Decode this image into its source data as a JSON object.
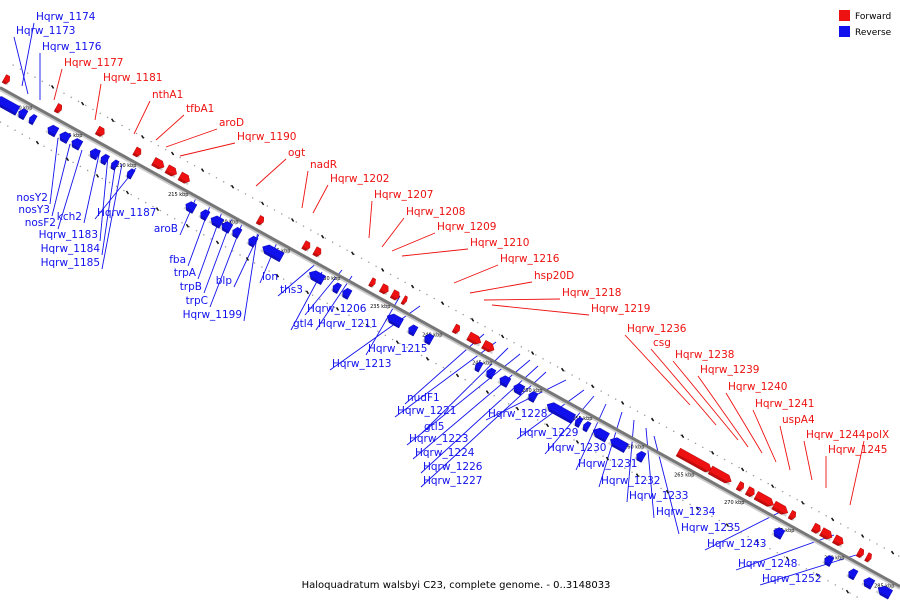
{
  "caption": "Haloquadratum walsbyi C23, complete genome. - 0..3148033",
  "legend": [
    {
      "label": "Forward",
      "color": "#ee1111"
    },
    {
      "label": "Reverse",
      "color": "#1111ee"
    }
  ],
  "colors": {
    "forward": "#ee1111",
    "reverse": "#1111ee",
    "axis": "#888888"
  },
  "ticks": [
    "200 kbp",
    "205 kbp",
    "210 kbp",
    "215 kbp",
    "220 kbp",
    "225 kbp",
    "230 kbp",
    "235 kbp",
    "240 kbp",
    "245 kbp",
    "250 kbp",
    "255 kbp",
    "260 kbp",
    "265 kbp",
    "270 kbp",
    "275 kbp",
    "280 kbp",
    "285 kbp"
  ],
  "forward_labels": [
    "Hqrw_1177",
    "Hqrw_1181",
    "nthA1",
    "tfbA1",
    "aroD",
    "Hqrw_1190",
    "ogt",
    "nadR",
    "Hqrw_1202",
    "Hqrw_1207",
    "Hqrw_1208",
    "Hqrw_1209",
    "Hqrw_1210",
    "Hqrw_1216",
    "hsp20D",
    "Hqrw_1218",
    "Hqrw_1219",
    "Hqrw_1236",
    "csg",
    "Hqrw_1238",
    "Hqrw_1239",
    "Hqrw_1240",
    "Hqrw_1241",
    "uspA4",
    "Hqrw_1244",
    "polX",
    "Hqrw_1245"
  ],
  "reverse_top_labels": [
    "Hqrw_1174",
    "Hqrw_1173",
    "Hqrw_1176"
  ],
  "reverse_labels": [
    "nosY2",
    "nosY3",
    "nosF2",
    "kch2",
    "Hqrw_1183",
    "Hqrw_1184",
    "Hqrw_1185",
    "Hqrw_1187",
    "aroB",
    "fba",
    "trpA",
    "trpB",
    "trpC",
    "Hqrw_1199",
    "blp",
    "lon",
    "ths3",
    "Hqrw_1206",
    "gtl4",
    "Hqrw_1211",
    "Hqrw_1215",
    "Hqrw_1213",
    "nudF1",
    "Hqrw_1221",
    "gtl5",
    "Hqrw_1223",
    "Hqrw_1224",
    "Hqrw_1226",
    "Hqrw_1227",
    "Hqrw_1228",
    "Hqrw_1229",
    "Hqrw_1230",
    "Hqrw_1231",
    "Hqrw_1232",
    "Hqrw_1233",
    "Hqrw_1234",
    "Hqrw_1235",
    "Hqrw_1243",
    "Hqrw_1248",
    "Hqrw_1252"
  ]
}
